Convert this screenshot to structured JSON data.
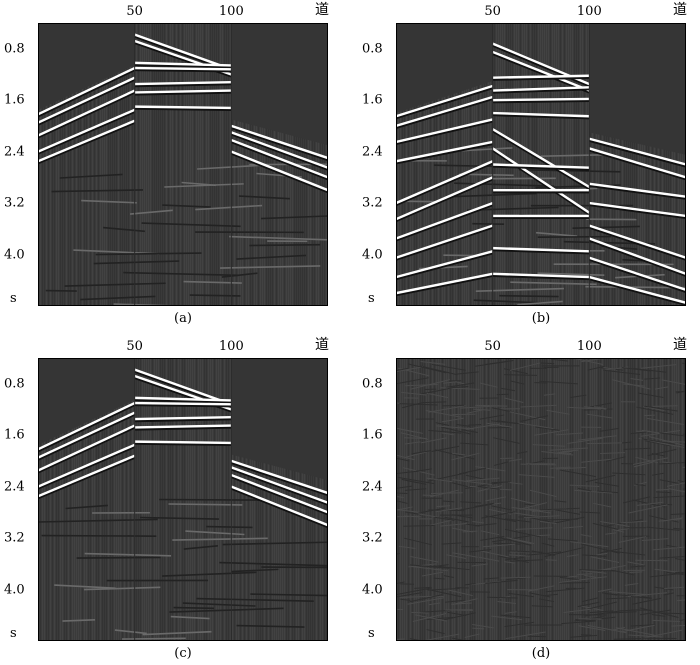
{
  "panels": [
    {
      "id": "a",
      "caption": "(a)",
      "kind": "clean"
    },
    {
      "id": "b",
      "caption": "(b)",
      "kind": "multiples"
    },
    {
      "id": "c",
      "caption": "(c)",
      "kind": "clean"
    },
    {
      "id": "d",
      "caption": "(d)",
      "kind": "noise"
    }
  ],
  "axis": {
    "x_ticks": [
      "50",
      "100"
    ],
    "x_unit": "道",
    "y_ticks": [
      "0.8",
      "1.6",
      "2.4",
      "3.2",
      "4.0"
    ],
    "y_unit": "s"
  },
  "chart_data": {
    "type": "seismic-gathers",
    "x_axis": {
      "label": "道",
      "ticks": [
        50,
        100
      ],
      "range": [
        0,
        150
      ]
    },
    "y_axis": {
      "label": "s",
      "ticks": [
        0.8,
        1.6,
        2.4,
        3.2,
        4.0
      ],
      "range": [
        0.4,
        4.8
      ]
    },
    "panels": [
      "(a)",
      "(b)",
      "(c)",
      "(d)"
    ]
  }
}
